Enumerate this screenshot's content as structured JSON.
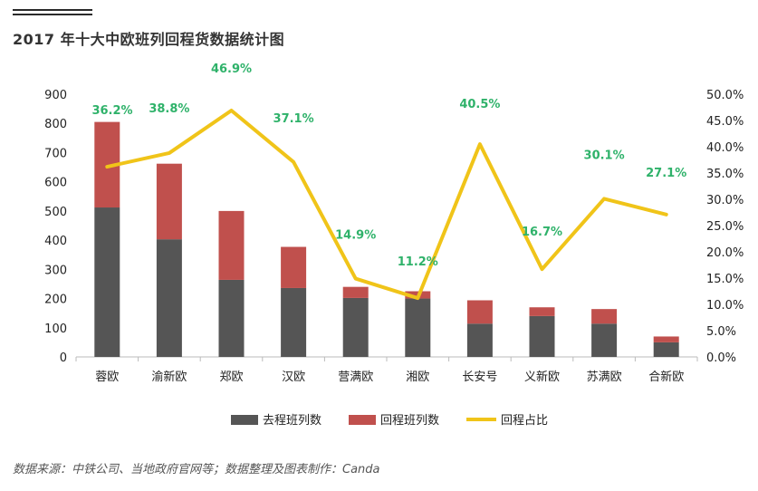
{
  "header": {
    "title": "2017 年十大中欧班列回程货数据统计图"
  },
  "footer": {
    "source": "数据来源：中铁公司、当地政府官网等；数据整理及图表制作：Canda"
  },
  "colors": {
    "outbound": "#555555",
    "return": "#c0504d",
    "ratio": "#f0c419",
    "ratio_label": "#2fb26a",
    "axis": "#bbbbbb"
  },
  "chart_data": {
    "type": "bar",
    "stacked": true,
    "categories": [
      "蓉欧",
      "渝新欧",
      "郑欧",
      "汉欧",
      "营满欧",
      "湘欧",
      "长安号",
      "义新欧",
      "苏满欧",
      "合新欧"
    ],
    "series": [
      {
        "name": "去程班列数",
        "kind": "bar",
        "axis": "left",
        "values": [
          512,
          403,
          264,
          236,
          202,
          200,
          114,
          140,
          114,
          50
        ]
      },
      {
        "name": "回程班列数",
        "kind": "bar",
        "axis": "left",
        "values": [
          293,
          259,
          236,
          141,
          38,
          25,
          80,
          30,
          50,
          20
        ]
      },
      {
        "name": "回程占比",
        "kind": "line",
        "axis": "right",
        "values": [
          36.2,
          38.8,
          46.9,
          37.1,
          14.9,
          11.2,
          40.5,
          16.7,
          30.1,
          27.1
        ]
      }
    ],
    "ratio_labels": [
      "36.2%",
      "38.8%",
      "46.9%",
      "37.1%",
      "14.9%",
      "11.2%",
      "40.5%",
      "16.7%",
      "30.1%",
      "27.1%"
    ],
    "y_left": {
      "min": 0,
      "max": 900,
      "ticks": [
        "0",
        "100",
        "200",
        "300",
        "400",
        "500",
        "600",
        "700",
        "800",
        "900"
      ]
    },
    "y_right": {
      "min": 0,
      "max": 50,
      "ticks": [
        "0.0%",
        "5.0%",
        "10.0%",
        "15.0%",
        "20.0%",
        "25.0%",
        "30.0%",
        "35.0%",
        "40.0%",
        "45.0%",
        "50.0%"
      ]
    },
    "legend": {
      "position": "bottom",
      "items": [
        "去程班列数",
        "回程班列数",
        "回程占比"
      ]
    },
    "grid": false
  }
}
